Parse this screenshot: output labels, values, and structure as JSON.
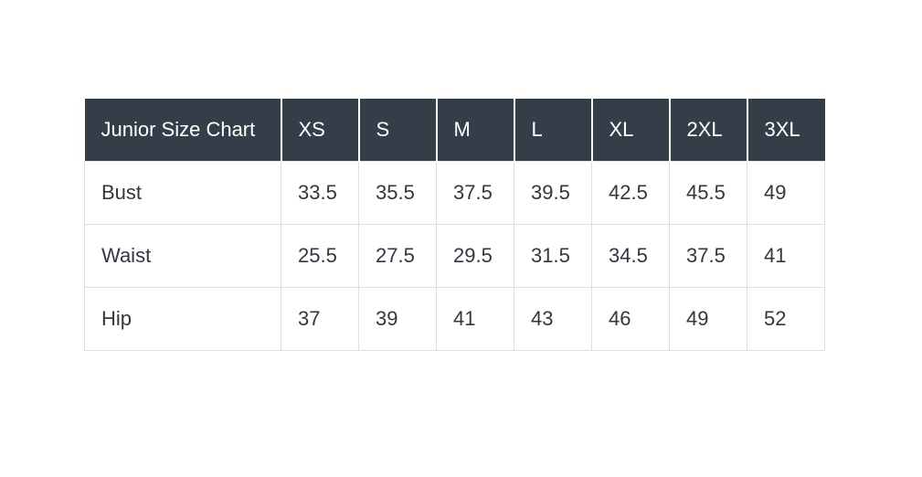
{
  "colors": {
    "page_background": "#ffffff",
    "header_background": "#333e48",
    "header_text": "#ffffff",
    "body_text": "#35353f",
    "cell_border": "#dfdfdf",
    "header_divider": "#ffffff"
  },
  "chart_data": {
    "type": "table",
    "title": "Junior Size Chart",
    "columns": [
      "XS",
      "S",
      "M",
      "L",
      "XL",
      "2XL",
      "3XL"
    ],
    "rows": [
      {
        "label": "Bust",
        "values": [
          "33.5",
          "35.5",
          "37.5",
          "39.5",
          "42.5",
          "45.5",
          "49"
        ]
      },
      {
        "label": "Waist",
        "values": [
          "25.5",
          "27.5",
          "29.5",
          "31.5",
          "34.5",
          "37.5",
          "41"
        ]
      },
      {
        "label": "Hip",
        "values": [
          "37",
          "39",
          "41",
          "43",
          "46",
          "49",
          "52"
        ]
      }
    ]
  }
}
